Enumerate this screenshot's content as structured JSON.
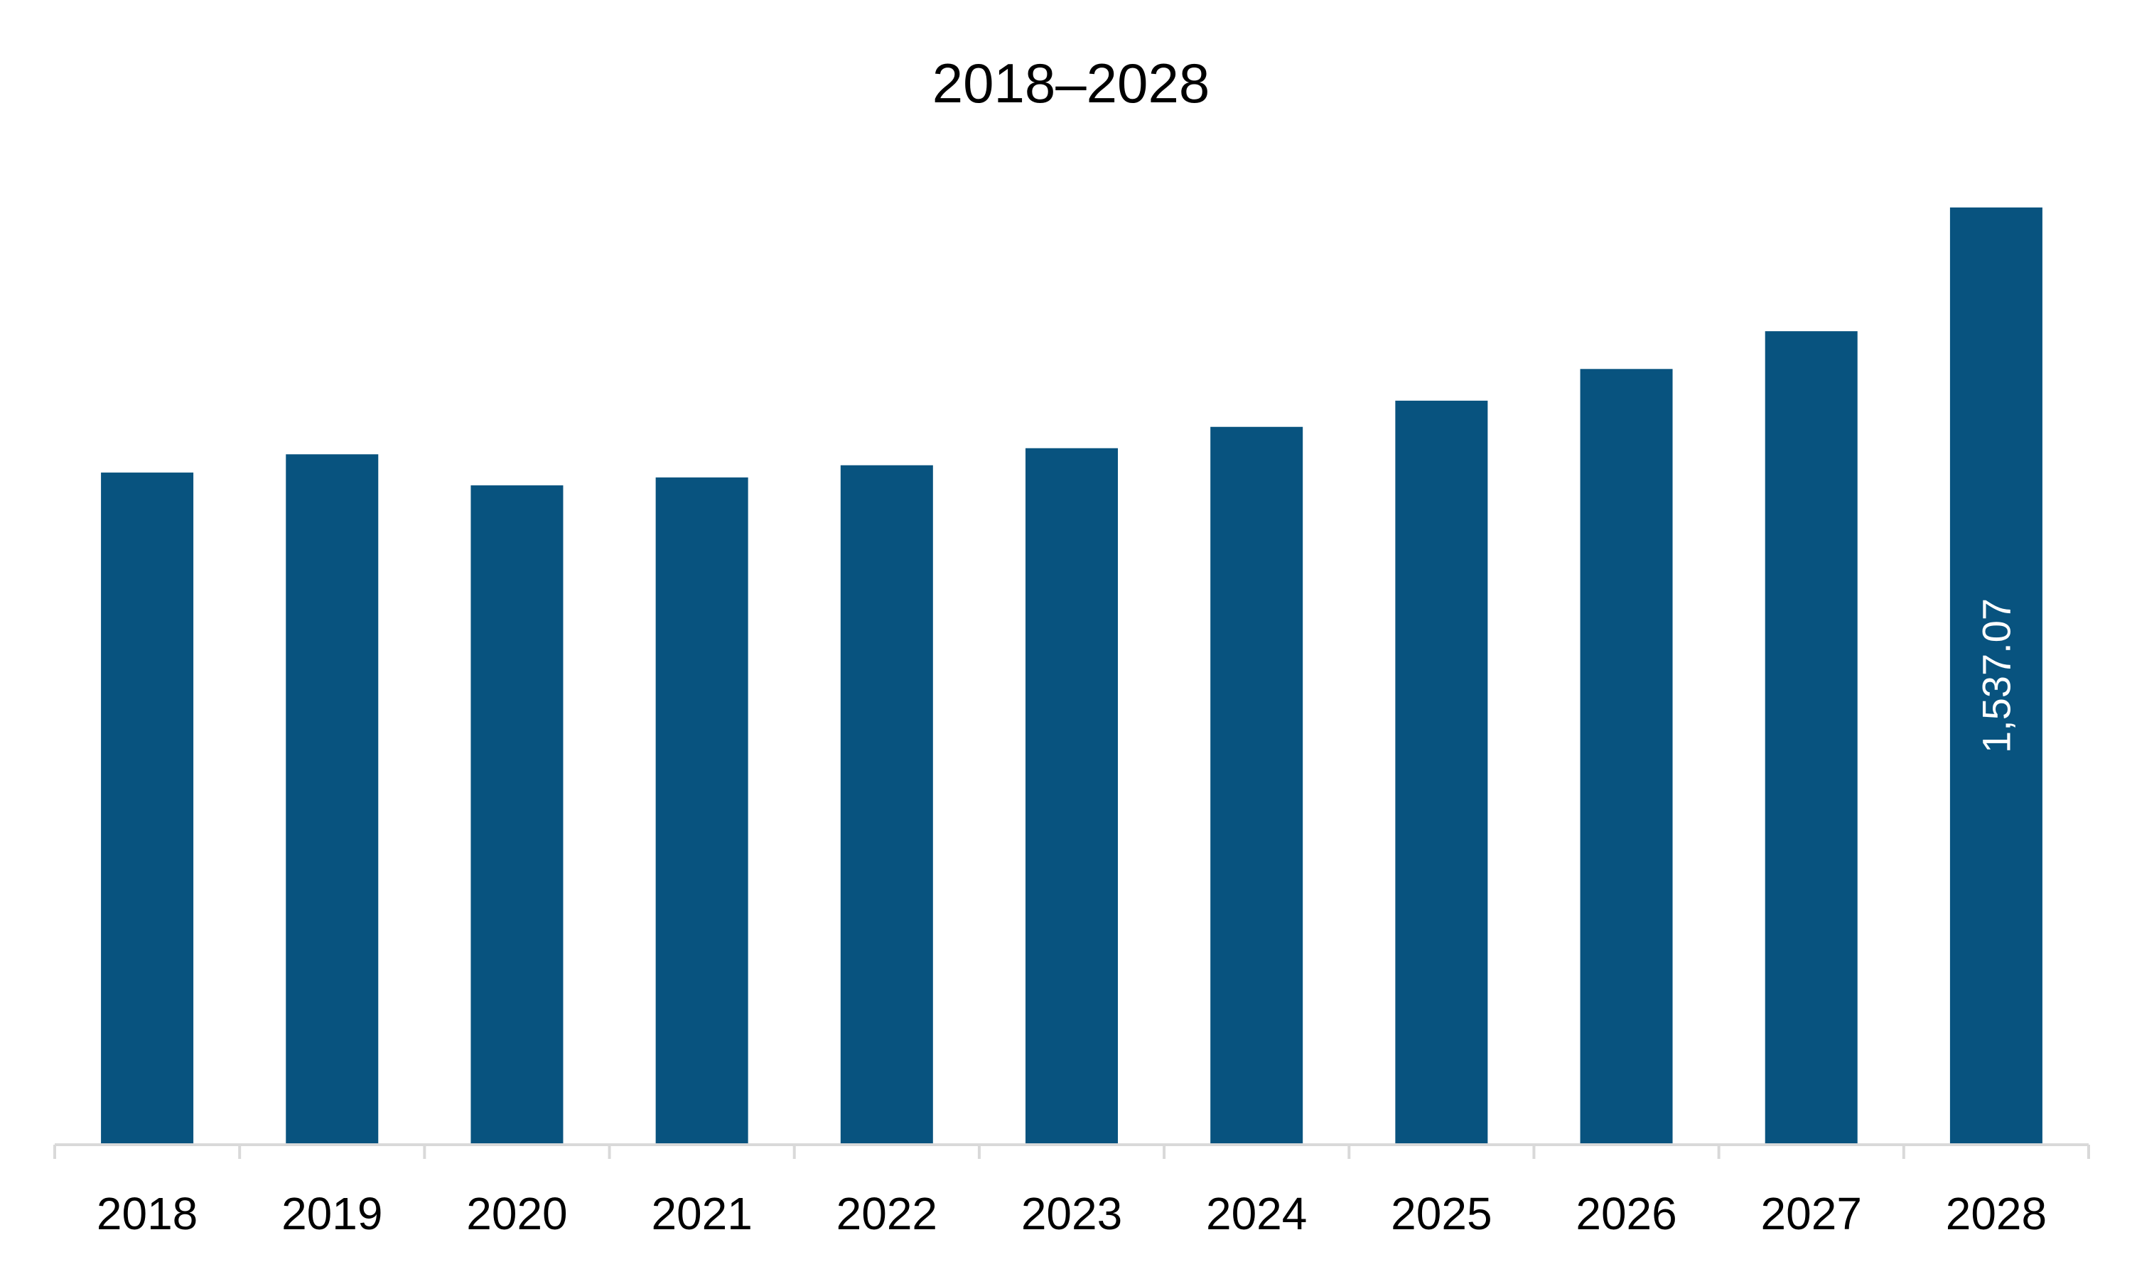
{
  "chart_data": {
    "type": "bar",
    "title": "2018–2028",
    "xlabel": "",
    "ylabel": "",
    "categories": [
      "2018",
      "2019",
      "2020",
      "2021",
      "2022",
      "2023",
      "2024",
      "2025",
      "2026",
      "2027",
      "2028"
    ],
    "values": [
      1102,
      1132,
      1081,
      1094,
      1114,
      1142,
      1177,
      1220,
      1272,
      1334,
      1537.07
    ],
    "data_labels": [
      "",
      "",
      "",
      "",
      "",
      "",
      "",
      "",
      "",
      "",
      "1,537.07"
    ],
    "ylim": [
      0,
      1537.07
    ],
    "grid": false,
    "legend": "none",
    "bar_color": "#08537f",
    "axis_color": "#d9d9d9",
    "text_color": "#000000",
    "label_color": "#ffffff"
  }
}
